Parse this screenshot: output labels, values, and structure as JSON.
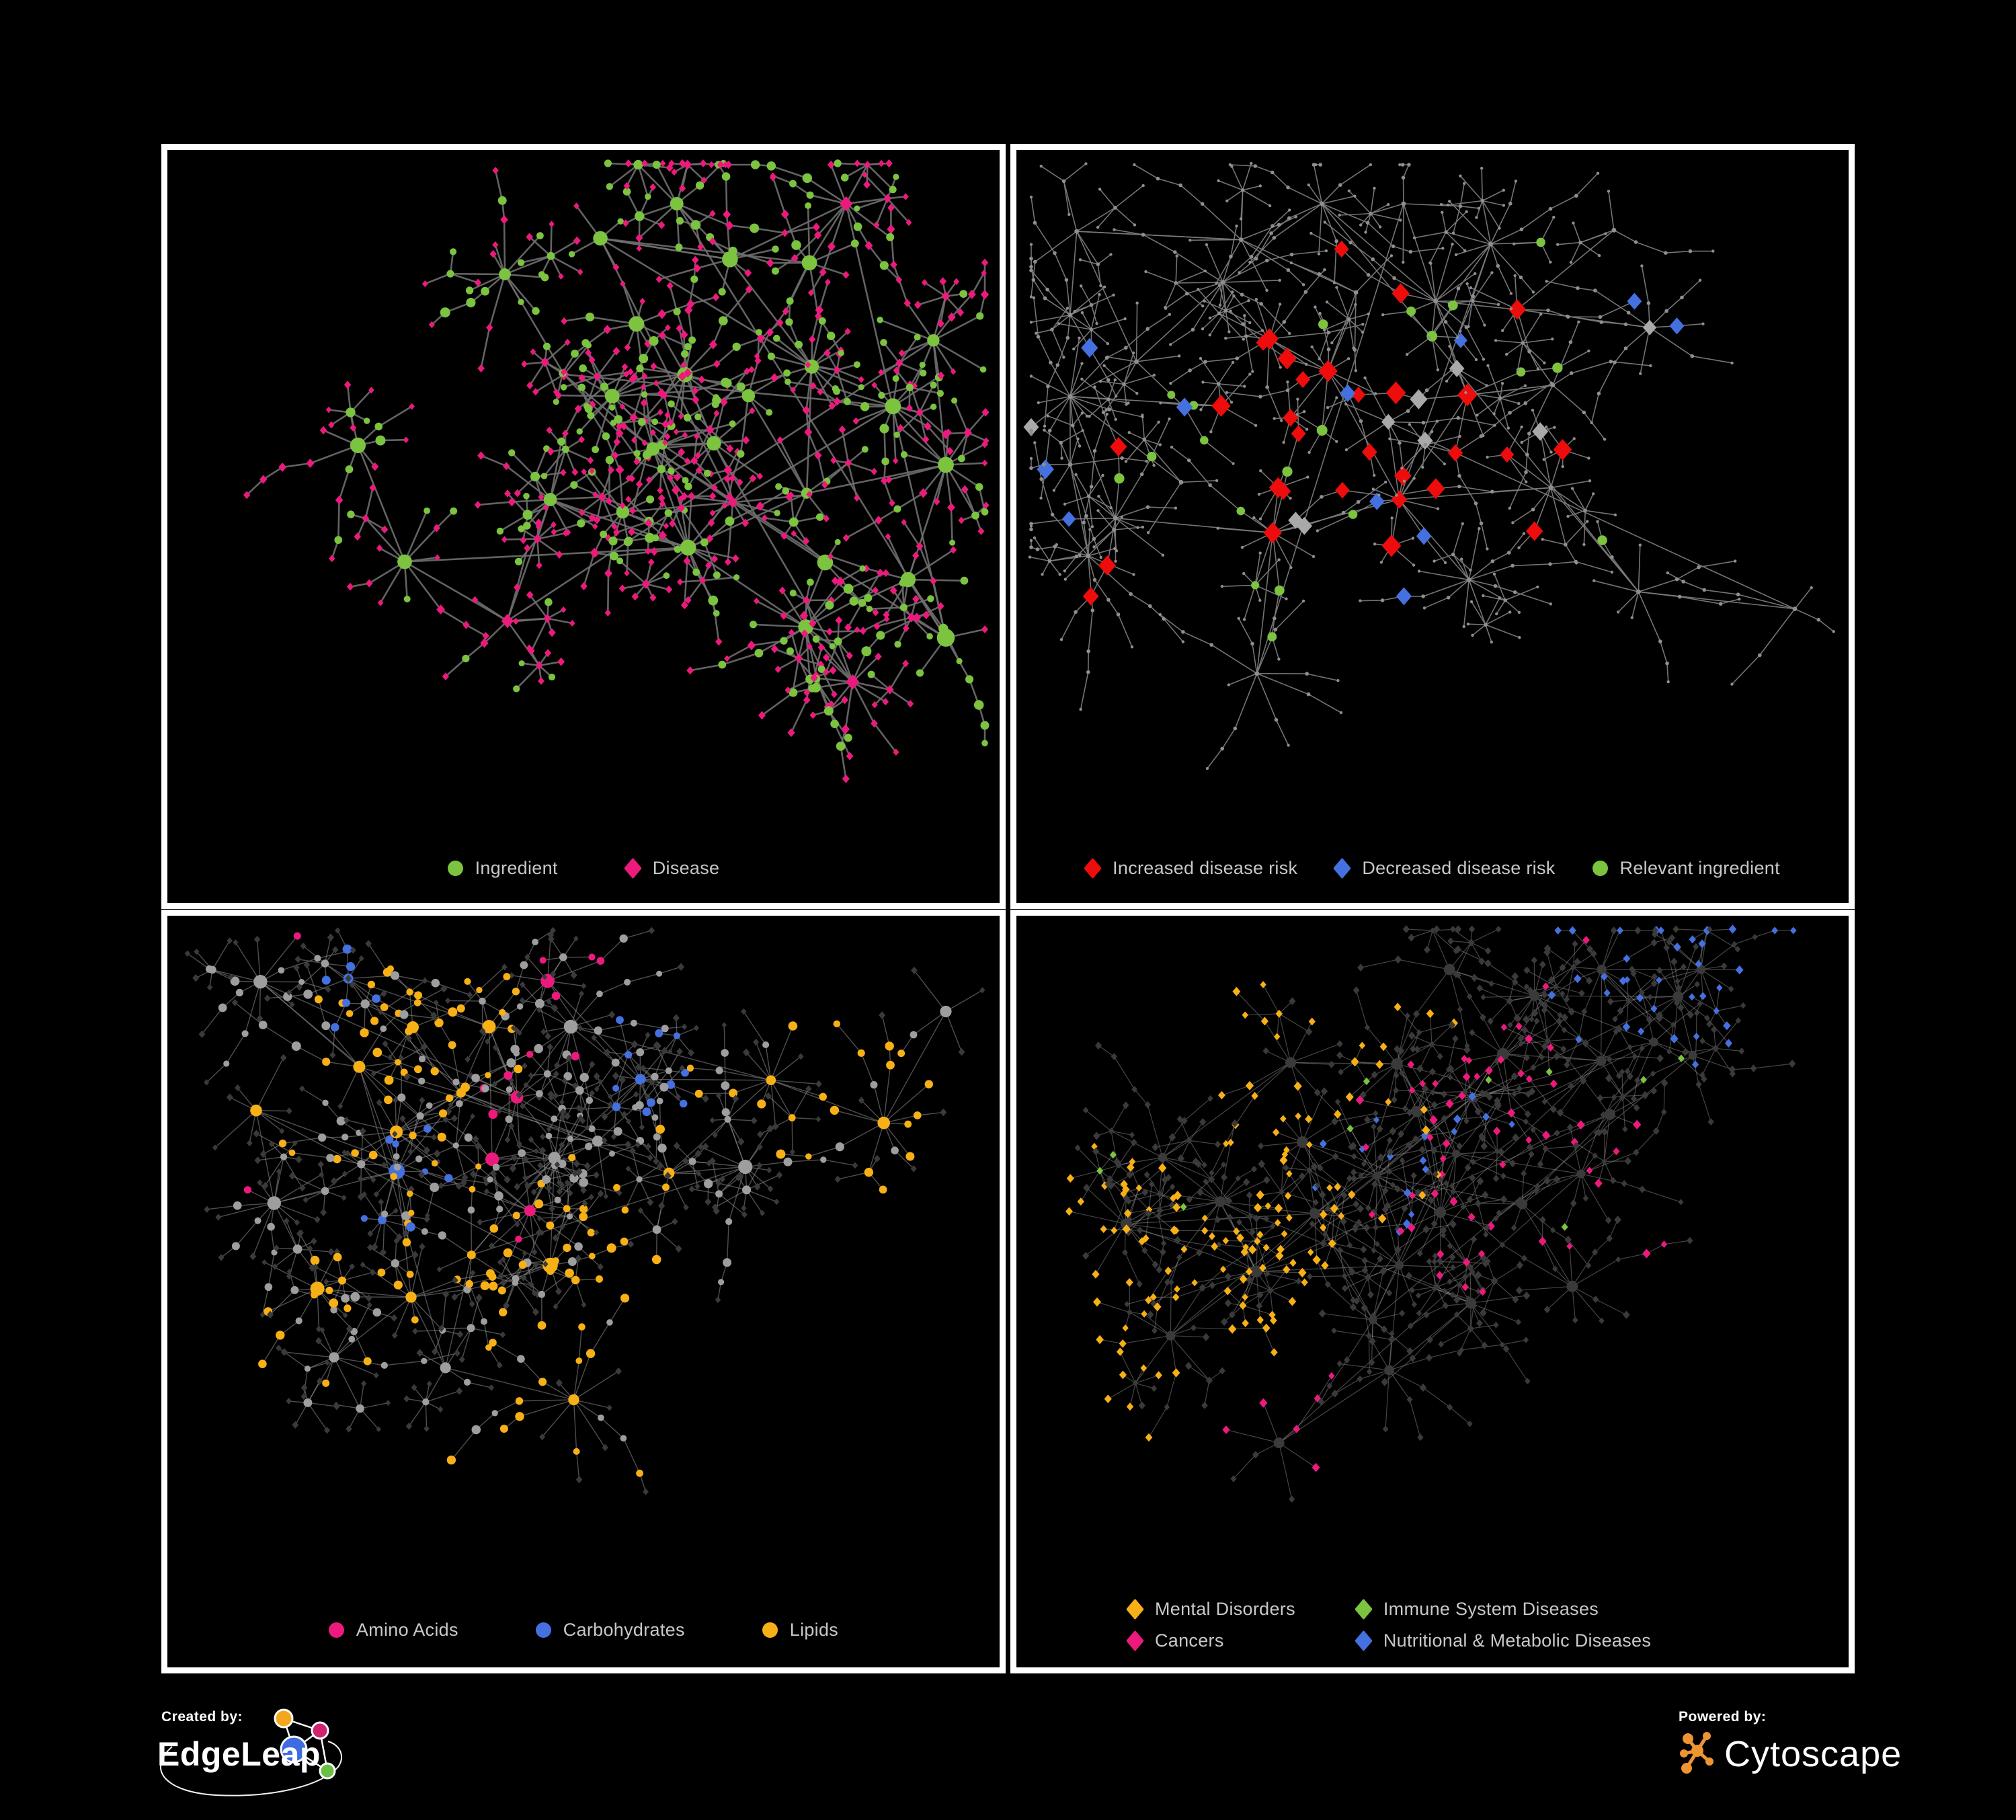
{
  "palette": {
    "background": "#000000",
    "panel_border": "#ffffff",
    "legend_text": "#c8c8c8",
    "green": "#7cc33f",
    "pink": "#ec1a7d",
    "red": "#ee0c0c",
    "blue": "#4470e0",
    "orange": "#f7b016",
    "gray_node": "#8f8f8f",
    "light_gray": "#9e9e9e",
    "gray_diamond": "#a9a9a9",
    "dark_node": "#3a3a3a"
  },
  "panels": [
    {
      "id": "ingredient-disease",
      "legend": [
        {
          "label": "Ingredient",
          "shape": "circle",
          "color": "green"
        },
        {
          "label": "Disease",
          "shape": "diamond",
          "color": "pink"
        }
      ],
      "network": {
        "style": "p1",
        "seed": 7,
        "hubs": 30,
        "hubDist": 150,
        "leaf": [
          4,
          14
        ],
        "chain": 0.34,
        "midHub": 0.18,
        "cross": 12,
        "areaH": 1000,
        "edge": {
          "color": "#6e6e6e",
          "width": 2.6,
          "opacity": 0.9
        }
      }
    },
    {
      "id": "disease-risk",
      "legend": [
        {
          "label": "Increased disease risk",
          "shape": "diamond",
          "color": "red"
        },
        {
          "label": "Decreased disease risk",
          "shape": "diamond",
          "color": "blue"
        },
        {
          "label": "Relevant ingredient",
          "shape": "circle",
          "color": "green"
        }
      ],
      "network": {
        "style": "p2",
        "seed": 23,
        "hubs": 32,
        "hubDist": 168,
        "leaf": [
          3,
          12
        ],
        "chain": 0.5,
        "midHub": 0.2,
        "cross": 9,
        "areaH": 1000,
        "edge": {
          "color": "#7a7a7a",
          "width": 1.6,
          "opacity": 0.95
        }
      }
    },
    {
      "id": "nutrients",
      "legend": [
        {
          "label": "Amino Acids",
          "shape": "circle",
          "color": "pink"
        },
        {
          "label": "Carbohydrates",
          "shape": "circle",
          "color": "blue"
        },
        {
          "label": "Lipids",
          "shape": "circle",
          "color": "orange"
        }
      ],
      "network": {
        "style": "p3",
        "seed": 5,
        "hubs": 30,
        "hubDist": 152,
        "leaf": [
          4,
          14
        ],
        "chain": 0.38,
        "midHub": 0.2,
        "cross": 14,
        "areaH": 1000,
        "edge": {
          "color": "#8f8f8f",
          "width": 1.4,
          "opacity": 0.55
        }
      }
    },
    {
      "id": "disease-categories",
      "legend": [
        {
          "label": "Mental Disorders",
          "shape": "diamond",
          "color": "orange"
        },
        {
          "label": "Immune System Diseases",
          "shape": "diamond",
          "color": "green"
        },
        {
          "label": "Cancers",
          "shape": "diamond",
          "color": "pink"
        },
        {
          "label": "Nutritional & Metabolic Diseases",
          "shape": "diamond",
          "color": "blue"
        }
      ],
      "network": {
        "style": "p4",
        "seed": 41,
        "hubs": 32,
        "hubDist": 150,
        "leaf": [
          5,
          14
        ],
        "chain": 0.38,
        "midHub": 0.2,
        "cross": 14,
        "areaH": 1000,
        "edge": {
          "color": "#9a9a9a",
          "width": 1.2,
          "opacity": 0.45
        }
      }
    }
  ],
  "footer": {
    "created_by": "Created by:",
    "edgeleap": "EdgeLeap",
    "powered_by": "Powered by:",
    "cytoscape": "Cytoscape"
  }
}
